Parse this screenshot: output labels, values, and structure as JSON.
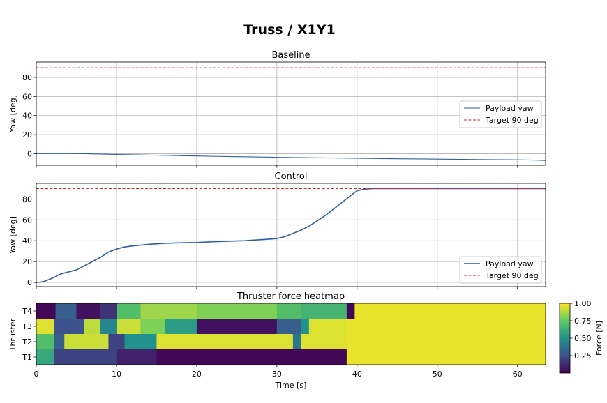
{
  "figure": {
    "suptitle": "Truss / X1Y1"
  },
  "chart_data": [
    {
      "type": "line",
      "title": "Baseline",
      "ylabel": "Yaw [deg]",
      "xlim": [
        0,
        63.5
      ],
      "ylim": [
        -12,
        96
      ],
      "yticks": [
        0,
        20,
        40,
        60,
        80
      ],
      "xticks": [
        0,
        10,
        20,
        30,
        40,
        50,
        60
      ],
      "grid": true,
      "legend_position": "center-right",
      "series": [
        {
          "name": "Payload yaw",
          "color": "#2e5fa3",
          "x": [
            0,
            2,
            4,
            6,
            8,
            10,
            12,
            15,
            18,
            20,
            22,
            25,
            28,
            30,
            33,
            35,
            38,
            40,
            43,
            45,
            48,
            50,
            53,
            55,
            58,
            60,
            62,
            63.5
          ],
          "y": [
            0.2,
            0.3,
            0.3,
            0.1,
            -0.3,
            -0.7,
            -1.0,
            -1.5,
            -2.0,
            -2.3,
            -2.6,
            -3.0,
            -3.4,
            -3.7,
            -4.0,
            -4.2,
            -4.5,
            -4.7,
            -5.0,
            -5.2,
            -5.4,
            -5.6,
            -5.8,
            -6.0,
            -6.2,
            -6.3,
            -6.6,
            -7.0
          ]
        },
        {
          "name": "Target 90 deg",
          "color": "#d62728",
          "dashed": true,
          "x": [
            0,
            63.5
          ],
          "y": [
            90,
            90
          ]
        }
      ]
    },
    {
      "type": "line",
      "title": "Control",
      "ylabel": "Yaw [deg]",
      "xlim": [
        0,
        63.5
      ],
      "ylim": [
        -4,
        95
      ],
      "yticks": [
        0,
        20,
        40,
        60,
        80
      ],
      "xticks": [
        0,
        10,
        20,
        30,
        40,
        50,
        60
      ],
      "grid": true,
      "legend_position": "bottom-right",
      "series": [
        {
          "name": "Payload yaw",
          "color": "#2e5fa3",
          "x": [
            0,
            0.5,
            1,
            2,
            3,
            4,
            5,
            6,
            7,
            8,
            9,
            10,
            11,
            12,
            14,
            16,
            18,
            20,
            22,
            24,
            26,
            28,
            29,
            30,
            31,
            32,
            33,
            34,
            35,
            36,
            37,
            38,
            39,
            40,
            41,
            42,
            44,
            46,
            50,
            55,
            60,
            63.5
          ],
          "y": [
            0,
            0.2,
            1,
            4,
            8,
            10,
            12,
            16,
            20,
            24,
            29,
            32,
            34,
            35,
            36.5,
            37.5,
            38,
            38.3,
            39,
            39.5,
            40,
            41,
            41.5,
            42,
            44,
            47,
            50,
            54,
            59,
            64,
            70,
            76,
            82,
            88,
            89.5,
            90,
            90,
            90,
            90,
            90,
            90,
            90
          ]
        },
        {
          "name": "Target 90 deg",
          "color": "#d62728",
          "dashed": true,
          "x": [
            0,
            63.5
          ],
          "y": [
            90,
            90
          ]
        }
      ]
    },
    {
      "type": "heatmap",
      "title": "Thruster force heatmap",
      "xlabel": "Time [s]",
      "ylabel": "Thruster",
      "xlim": [
        0,
        63.5
      ],
      "xticks": [
        0,
        10,
        20,
        30,
        40,
        50,
        60
      ],
      "rows": [
        "T4",
        "T3",
        "T2",
        "T1"
      ],
      "colormap": "viridis",
      "colorbar": {
        "label": "Force [N]",
        "min": 0.0,
        "max": 1.0,
        "ticks": [
          0.25,
          0.5,
          0.75,
          1.0
        ],
        "tick_labels": [
          "0.25",
          "0.50",
          "0.75",
          "1.00"
        ]
      },
      "segments": {
        "T4": [
          [
            0,
            2.4,
            0.02
          ],
          [
            2.4,
            5,
            0.3
          ],
          [
            5,
            8,
            0.05
          ],
          [
            8,
            10,
            0.15
          ],
          [
            10,
            13,
            0.7
          ],
          [
            13,
            20,
            0.85
          ],
          [
            20,
            30,
            0.8
          ],
          [
            30,
            33,
            0.7
          ],
          [
            33,
            38.7,
            0.65
          ],
          [
            38.7,
            39.7,
            0.02
          ],
          [
            39.7,
            63.5,
            0.97
          ]
        ],
        "T3": [
          [
            0,
            2.2,
            0.95
          ],
          [
            2.2,
            6,
            0.25
          ],
          [
            6,
            8,
            0.9
          ],
          [
            8,
            10,
            0.45
          ],
          [
            10,
            13,
            0.92
          ],
          [
            13,
            16,
            0.8
          ],
          [
            16,
            20,
            0.55
          ],
          [
            20,
            30,
            0.05
          ],
          [
            30,
            33,
            0.3
          ],
          [
            33,
            34,
            0.5
          ],
          [
            34,
            38.7,
            0.95
          ],
          [
            38.7,
            63.5,
            0.97
          ]
        ],
        "T2": [
          [
            0,
            2.2,
            0.7
          ],
          [
            2.2,
            3.5,
            0.3
          ],
          [
            3.5,
            9,
            0.92
          ],
          [
            9,
            11,
            0.2
          ],
          [
            11,
            15,
            0.5
          ],
          [
            15,
            32,
            0.95
          ],
          [
            32,
            33,
            0.4
          ],
          [
            33,
            38.7,
            0.95
          ],
          [
            38.7,
            63.5,
            0.97
          ]
        ],
        "T1": [
          [
            0,
            2.2,
            0.6
          ],
          [
            2.2,
            10,
            0.2
          ],
          [
            10,
            15,
            0.1
          ],
          [
            15,
            38.7,
            0.02
          ],
          [
            38.7,
            63.5,
            0.97
          ]
        ]
      }
    }
  ]
}
